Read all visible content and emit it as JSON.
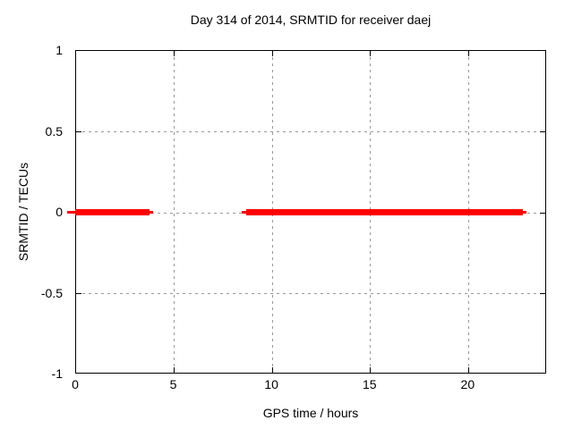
{
  "chart_data": {
    "type": "line",
    "title": "Day 314 of 2014, SRMTID for receiver daej",
    "xlabel": "GPS time / hours",
    "ylabel": "SRMTID / TECUs",
    "xlim": [
      0,
      24
    ],
    "ylim": [
      -1,
      1
    ],
    "xticks": [
      0,
      5,
      10,
      15,
      20
    ],
    "yticks": [
      -1,
      -0.5,
      0,
      0.5,
      1
    ],
    "grid": true,
    "legend": "none",
    "background_color": "#ffffff",
    "axis_color": "#000000",
    "grid_color": "#999999",
    "series": [
      {
        "name": "SRMTID",
        "color": "#ff0000",
        "y_value": 0,
        "segments": [
          {
            "start_hours": 0.0,
            "end_hours": 3.8
          },
          {
            "start_hours": 8.7,
            "end_hours": 22.8
          }
        ]
      }
    ]
  }
}
